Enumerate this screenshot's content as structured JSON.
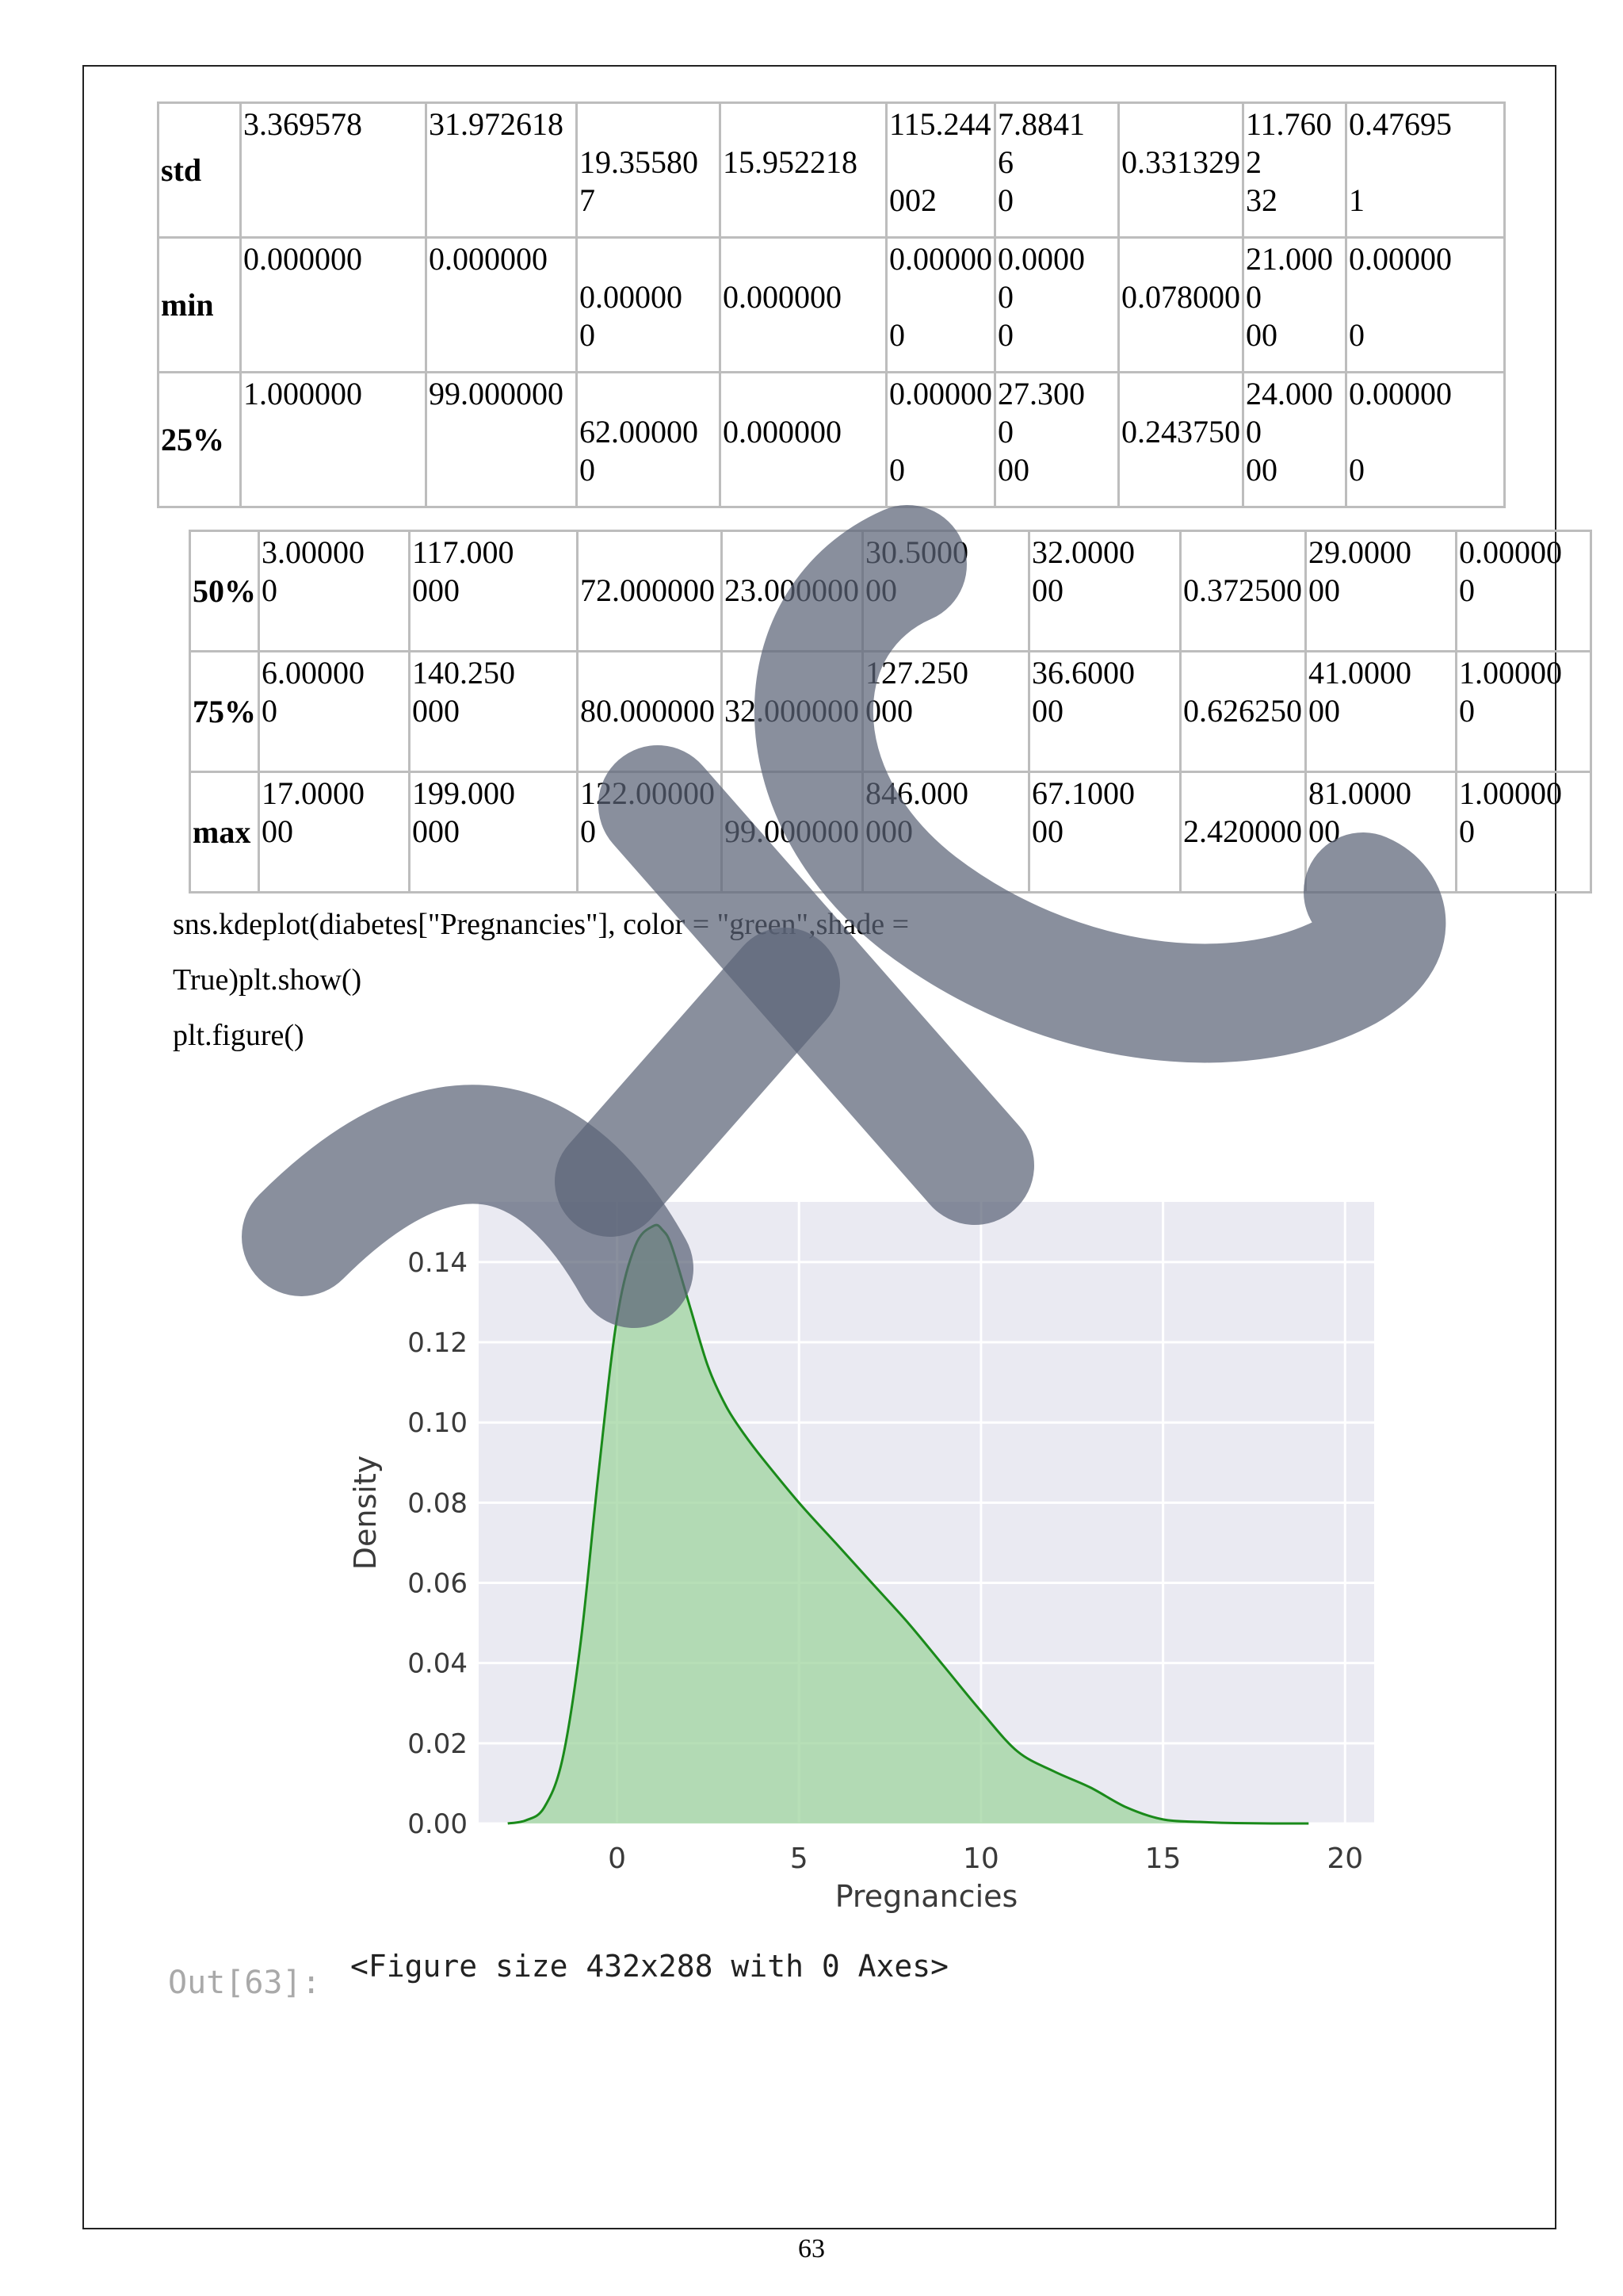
{
  "table1": {
    "rows": [
      {
        "label": "std",
        "cells": [
          "3.369578",
          "31.972618",
          "\n19.35580\n7",
          "\n15.952218",
          "115.244\n\n002",
          "7.8841\n6\n0",
          "\n0.331329",
          "11.760\n2\n32",
          "0.47695\n\n1"
        ]
      },
      {
        "label": "min",
        "cells": [
          "0.000000",
          "0.000000",
          "\n0.00000\n0",
          "\n0.000000",
          "0.00000\n\n0",
          "0.0000\n0\n0",
          "\n0.078000",
          "21.000\n0\n00",
          "0.00000\n\n0"
        ]
      },
      {
        "label": "25%",
        "cells": [
          "1.000000",
          "99.000000",
          "\n62.00000\n0",
          "\n0.000000",
          "0.00000\n\n0",
          "27.300\n0\n00",
          "\n0.243750",
          "24.000\n0\n00",
          "0.00000\n\n            0"
        ]
      }
    ]
  },
  "table2": {
    "rows": [
      {
        "label": "50%",
        "cells": [
          "3.00000\n         0",
          "117.000\n           000",
          "\n72.000000",
          "\n23.000000",
          "30.5000\n             00",
          "32.0000\n           00",
          "\n0.372500",
          "29.0000\n            00",
          "0.00000\n           0"
        ]
      },
      {
        "label": "75%",
        "cells": [
          "6.00000\n         0",
          "140.250\n           000",
          "\n80.000000",
          "\n32.000000",
          "127.250\n           000",
          "36.6000\n           00",
          "\n0.626250",
          "41.0000\n            00",
          "1.00000\n           0"
        ]
      },
      {
        "label": "max",
        "cells": [
          "17.0000\n          00",
          "199.000\n           000",
          "122.00000\n            0",
          "\n99.000000",
          "846.000\n           000",
          "67.1000\n           00",
          "\n2.420000",
          "81.0000\n            00",
          "1.00000\n           0"
        ]
      }
    ]
  },
  "code": {
    "line1": "sns.kdeplot(diabetes[\"Pregnancies\"], color = \"green\",shade =",
    "line2": "True)plt.show()",
    "line3": "plt.figure()"
  },
  "chart_data": {
    "type": "area",
    "xlabel": "Pregnancies",
    "ylabel": "Density",
    "xlim": [
      -3.8,
      20.8
    ],
    "ylim": [
      0,
      0.155
    ],
    "xticks": [
      0,
      5,
      10,
      15,
      20
    ],
    "yticks": [
      0.0,
      0.02,
      0.04,
      0.06,
      0.08,
      0.1,
      0.12,
      0.14
    ],
    "ytick_labels": [
      "0.00",
      "0.02",
      "0.04",
      "0.06",
      "0.08",
      "0.10",
      "0.12",
      "0.14"
    ],
    "grid": true,
    "colors": {
      "line": "#1a8a1a",
      "fill": "#9fd49f",
      "background": "#eaeaf2"
    },
    "x": [
      -3.0,
      -2.5,
      -2.0,
      -1.5,
      -1.0,
      -0.5,
      0.0,
      0.5,
      1.0,
      1.25,
      1.5,
      2.0,
      2.5,
      3.0,
      3.5,
      4.0,
      5.0,
      6.0,
      7.0,
      8.0,
      9.0,
      10.0,
      11.0,
      12.0,
      13.0,
      14.0,
      15.0,
      16.0,
      17.0,
      18.0,
      19.0
    ],
    "y": [
      0.0,
      0.0008,
      0.004,
      0.016,
      0.045,
      0.088,
      0.126,
      0.144,
      0.149,
      0.148,
      0.144,
      0.129,
      0.114,
      0.104,
      0.097,
      0.091,
      0.08,
      0.07,
      0.06,
      0.05,
      0.039,
      0.028,
      0.018,
      0.013,
      0.009,
      0.004,
      0.001,
      0.0004,
      0.0001,
      0.0,
      0.0
    ]
  },
  "output": {
    "prompt": "Out[63]:",
    "text": "<Figure size 432x288 with 0 Axes>"
  },
  "page_number": "63"
}
